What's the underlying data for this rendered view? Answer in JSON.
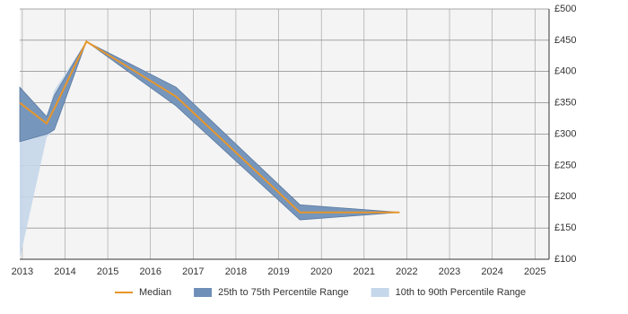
{
  "chart_data": {
    "type": "line",
    "x": [
      2012.94,
      2013.57,
      2013.75,
      2014.5,
      2016.6,
      2019.5,
      2021.83
    ],
    "series": [
      {
        "name": "Median",
        "color": "#e8962a",
        "values": [
          350,
          317,
          341,
          448,
          360,
          175,
          175
        ]
      },
      {
        "name": "25th to 75th Percentile Range",
        "color": "#6f8fb8",
        "high": [
          375,
          328,
          362,
          448,
          375,
          187,
          175
        ],
        "low": [
          288,
          300,
          307,
          448,
          345,
          163,
          175
        ]
      },
      {
        "name": "10th to 90th Percentile Range",
        "color": "#c5d7ea",
        "high": [
          375,
          328,
          370,
          448,
          375,
          187,
          175
        ],
        "low": [
          100,
          295,
          307,
          448,
          345,
          163,
          175
        ]
      }
    ],
    "xlim": [
      2012.94,
      2025.33
    ],
    "xticks": [
      2013,
      2014,
      2015,
      2016,
      2017,
      2018,
      2019,
      2020,
      2021,
      2022,
      2023,
      2024,
      2025
    ],
    "ylim": [
      100,
      500
    ],
    "yticks": [
      {
        "value": 100,
        "label": "£100"
      },
      {
        "value": 150,
        "label": "£150"
      },
      {
        "value": 200,
        "label": "£200"
      },
      {
        "value": 250,
        "label": "£250"
      },
      {
        "value": 300,
        "label": "£300"
      },
      {
        "value": 350,
        "label": "£350"
      },
      {
        "value": 400,
        "label": "£400"
      },
      {
        "value": 450,
        "label": "£450"
      },
      {
        "value": 500,
        "label": "£500"
      }
    ],
    "grid": true,
    "legend": "bottom"
  }
}
